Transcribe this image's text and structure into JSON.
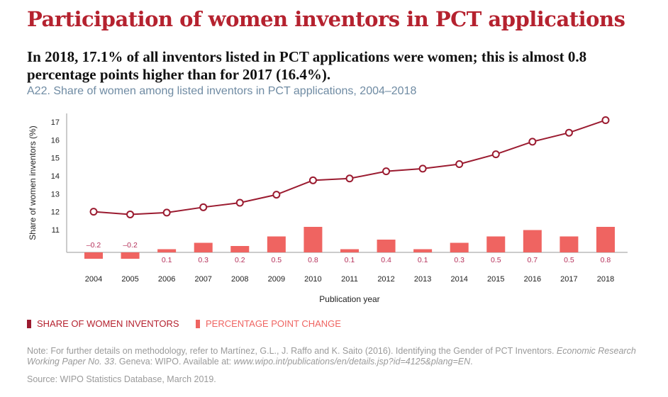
{
  "header": {
    "title": "Participation of women inventors in PCT applications",
    "lead": "In 2018, 17.1% of all inventors listed in PCT applications were women; this is almost 0.8 percentage points higher than for 2017 (16.4%).",
    "subtitle": "A22. Share of women among listed inventors in PCT applications, 2004–2018"
  },
  "chart_data": {
    "type": "line+bar",
    "xlabel": "Publication year",
    "ylabel": "Share of women inventors (%)",
    "categories": [
      "2004",
      "2005",
      "2006",
      "2007",
      "2008",
      "2009",
      "2010",
      "2011",
      "2012",
      "2013",
      "2014",
      "2015",
      "2016",
      "2017",
      "2018"
    ],
    "yticks": [
      "11",
      "12",
      "13",
      "14",
      "15",
      "16",
      "17"
    ],
    "ylim": [
      10.3,
      17.5
    ],
    "series": [
      {
        "name": "SHARE OF WOMEN INVENTORS",
        "type": "line",
        "color": "#9b1b30",
        "values": [
          12.0,
          11.85,
          11.95,
          12.25,
          12.5,
          12.95,
          13.75,
          13.85,
          14.25,
          14.4,
          14.65,
          15.2,
          15.9,
          16.4,
          17.1
        ]
      },
      {
        "name": "PERCENTAGE POINT CHANGE",
        "type": "bar",
        "color": "#ef6461",
        "values": [
          -0.2,
          -0.2,
          0.1,
          0.3,
          0.2,
          0.5,
          0.8,
          0.1,
          0.4,
          0.1,
          0.3,
          0.5,
          0.7,
          0.5,
          0.8
        ],
        "labels": [
          "–0.2",
          "–0.2",
          "0.1",
          "0.3",
          "0.2",
          "0.5",
          "0.8",
          "0.1",
          "0.4",
          "0.1",
          "0.3",
          "0.5",
          "0.7",
          "0.5",
          "0.8"
        ]
      }
    ],
    "legend": "bottom-left"
  },
  "footer": {
    "note_prefix": "Note: For further details on methodology, refer to Martínez, G.L., J. Raffo and K. Saito (2016). Identifying the Gender of PCT Inventors. ",
    "note_italic1": "Economic Research Working Paper No. 33",
    "note_mid": ". Geneva: WIPO. Available at: ",
    "note_italic2": "www.wipo.int/publications/en/details.jsp?id=4125&plang=EN",
    "note_end": ".",
    "source": "Source: WIPO Statistics Database, March 2019."
  }
}
